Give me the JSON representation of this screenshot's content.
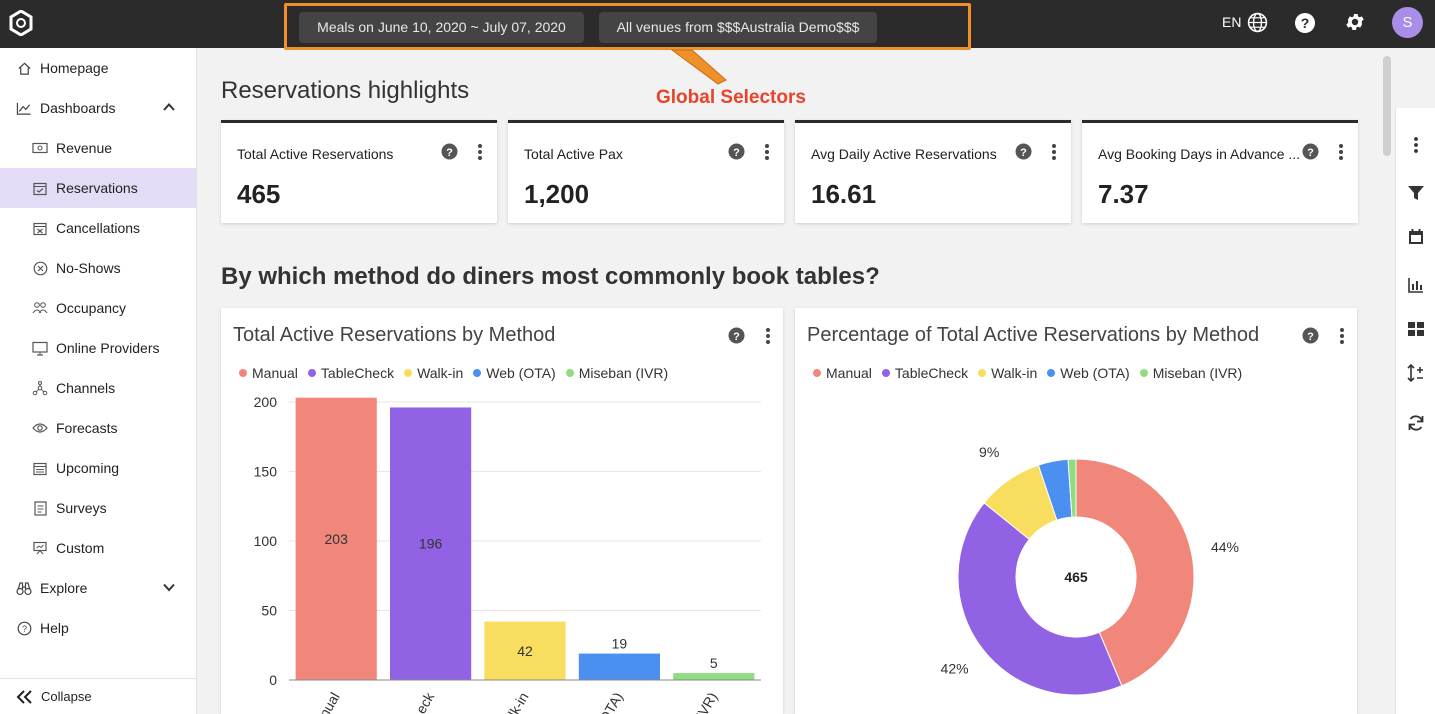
{
  "topbar": {
    "date_selector": "Meals on June 10, 2020 ~ July 07, 2020",
    "venue_selector": "All venues from $$$Australia Demo$$$",
    "language": "EN",
    "avatar_initial": "S"
  },
  "callout": {
    "text": "Global Selectors"
  },
  "sidebar": {
    "items": [
      {
        "label": "Homepage"
      },
      {
        "label": "Dashboards"
      },
      {
        "label": "Revenue"
      },
      {
        "label": "Reservations"
      },
      {
        "label": "Cancellations"
      },
      {
        "label": "No-Shows"
      },
      {
        "label": "Occupancy"
      },
      {
        "label": "Online Providers"
      },
      {
        "label": "Channels"
      },
      {
        "label": "Forecasts"
      },
      {
        "label": "Upcoming"
      },
      {
        "label": "Surveys"
      },
      {
        "label": "Custom"
      },
      {
        "label": "Explore"
      },
      {
        "label": "Help"
      }
    ],
    "collapse_label": "Collapse"
  },
  "main": {
    "title": "Reservations highlights",
    "kpis": [
      {
        "label": "Total Active Reservations",
        "value": "465"
      },
      {
        "label": "Total Active Pax",
        "value": "1,200"
      },
      {
        "label": "Avg Daily Active Reservations",
        "value": "16.61"
      },
      {
        "label": "Avg Booking Days in Advance ...",
        "value": "7.37"
      }
    ],
    "section_title": "By which method do diners most commonly book tables?",
    "bar_card_title": "Total Active Reservations by Method",
    "pie_card_title": "Percentage of Total Active Reservations by Method",
    "legend": [
      {
        "name": "Manual",
        "color": "#f0877a"
      },
      {
        "name": "TableCheck",
        "color": "#9162e4"
      },
      {
        "name": "Walk-in",
        "color": "#f8dd5e"
      },
      {
        "name": "Web (OTA)",
        "color": "#4b8ff0"
      },
      {
        "name": "Miseban (IVR)",
        "color": "#8fdc82"
      }
    ]
  },
  "chart_data": [
    {
      "type": "bar",
      "title": "Total Active Reservations by Method",
      "categories": [
        "Manual",
        "TableCheck",
        "Walk-in",
        "Web (OTA)",
        "Miseban (IVR)"
      ],
      "visible_tick_labels": [
        "nual",
        "eck",
        "lk-in",
        "OTA)",
        "IVR)"
      ],
      "values": [
        203,
        196,
        42,
        19,
        5
      ],
      "ylim": [
        0,
        210
      ],
      "yticks": [
        0,
        50,
        100,
        150,
        200
      ],
      "colors": [
        "#f0877a",
        "#9162e4",
        "#f8dd5e",
        "#4b8ff0",
        "#8fdc82"
      ],
      "grid": true,
      "legend": "top-left"
    },
    {
      "type": "pie",
      "title": "Percentage of Total Active Reservations by Method",
      "categories": [
        "Manual",
        "TableCheck",
        "Walk-in",
        "Web (OTA)",
        "Miseban (IVR)"
      ],
      "values": [
        203,
        196,
        42,
        19,
        5
      ],
      "labels": [
        "44%",
        "42%",
        "9%",
        "",
        ""
      ],
      "center_label": "465",
      "colors": [
        "#f0877a",
        "#9162e4",
        "#f8dd5e",
        "#4b8ff0",
        "#8fdc82"
      ],
      "legend": "top-left"
    }
  ]
}
